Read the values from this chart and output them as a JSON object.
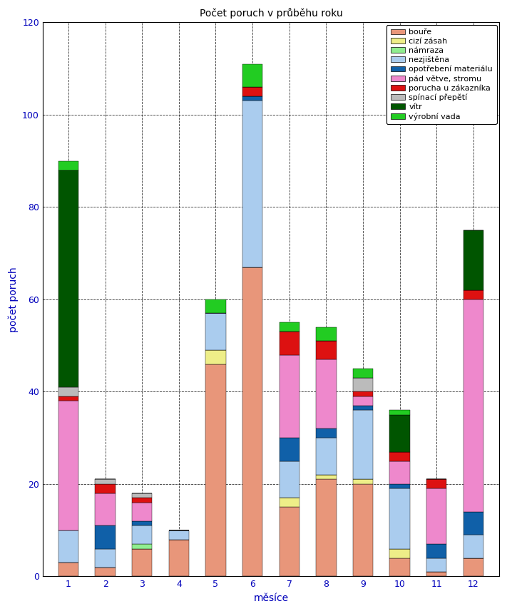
{
  "title": "Počet poruch v průběhu roku",
  "xlabel": "měsíce",
  "ylabel": "počet poruch",
  "months": [
    1,
    2,
    3,
    4,
    5,
    6,
    7,
    8,
    9,
    10,
    11,
    12
  ],
  "categories": [
    "bouře",
    "cizí zásah",
    "námraza",
    "nezjištěna",
    "opotřebení materiálu",
    "pád větve, stromu",
    "porucha u zákazníka",
    "spínací přepětí",
    "vítr",
    "výrobní vada"
  ],
  "colors": [
    "#E8967A",
    "#EEEE88",
    "#90EE90",
    "#AACCEE",
    "#1060A8",
    "#EE88CC",
    "#DD1111",
    "#BBBBBB",
    "#005500",
    "#22CC22"
  ],
  "data": {
    "bouře": [
      3,
      2,
      6,
      8,
      46,
      67,
      15,
      21,
      20,
      4,
      1,
      4
    ],
    "cizí zásah": [
      0,
      0,
      0,
      0,
      3,
      0,
      2,
      1,
      1,
      2,
      0,
      0
    ],
    "námraza": [
      0,
      0,
      1,
      0,
      0,
      0,
      0,
      0,
      0,
      0,
      0,
      0
    ],
    "nezjištěna": [
      7,
      4,
      4,
      2,
      8,
      36,
      8,
      8,
      15,
      13,
      3,
      5
    ],
    "opotřebení materiálu": [
      0,
      5,
      1,
      0,
      0,
      1,
      5,
      2,
      1,
      1,
      3,
      5
    ],
    "pád větve, stromu": [
      28,
      7,
      4,
      0,
      0,
      0,
      18,
      15,
      2,
      5,
      12,
      46
    ],
    "porucha u zákazníka": [
      1,
      2,
      1,
      0,
      0,
      2,
      5,
      4,
      1,
      2,
      2,
      2
    ],
    "spínací přepětí": [
      2,
      1,
      1,
      0,
      0,
      0,
      0,
      0,
      3,
      0,
      0,
      0
    ],
    "vítr": [
      47,
      0,
      0,
      0,
      0,
      0,
      0,
      0,
      0,
      8,
      0,
      13
    ],
    "výrobní vada": [
      2,
      0,
      0,
      0,
      3,
      5,
      2,
      3,
      2,
      1,
      0,
      0
    ]
  },
  "ylim": [
    0,
    120
  ],
  "yticks": [
    0,
    20,
    40,
    60,
    80,
    100,
    120
  ],
  "figsize": [
    7.11,
    8.57
  ],
  "dpi": 100,
  "bg_color": "#FFFFFF",
  "title_color": "#000000",
  "label_color": "#0000BB",
  "tick_color": "#0000BB"
}
